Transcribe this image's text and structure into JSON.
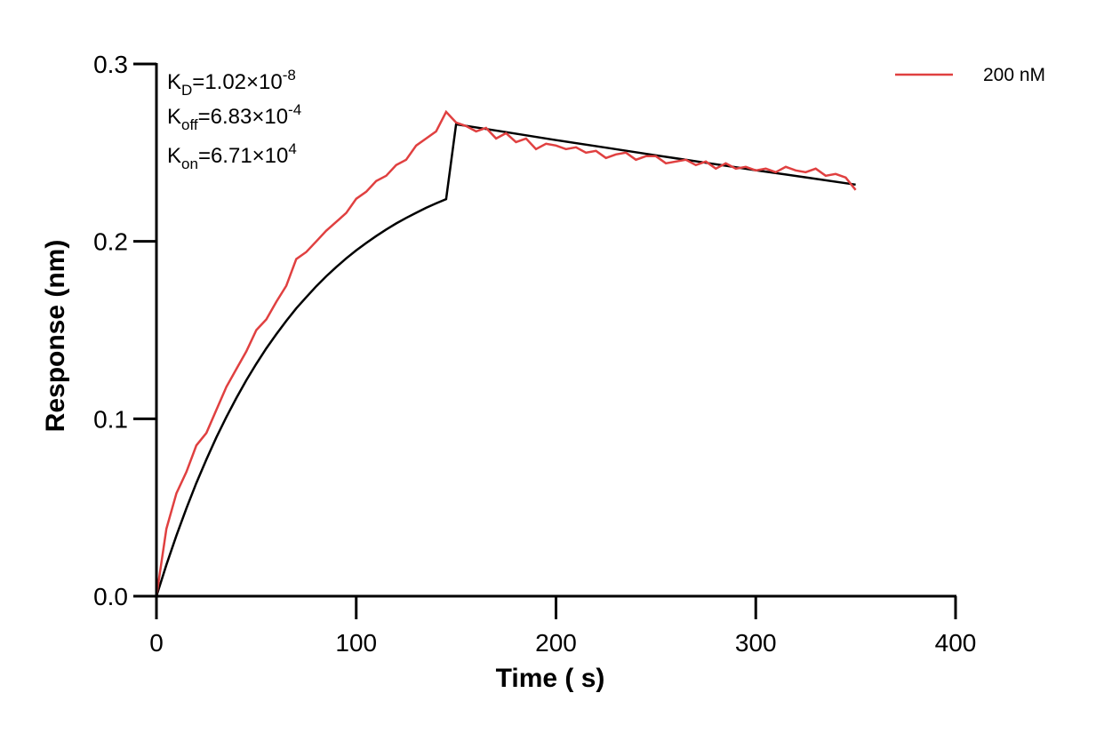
{
  "chart_data": {
    "type": "line",
    "title": "",
    "xlabel": "Time ( s)",
    "ylabel": "Response (nm)",
    "xlim": [
      0,
      400
    ],
    "ylim": [
      0,
      0.3
    ],
    "xticks": [
      0,
      100,
      200,
      300,
      400
    ],
    "yticks": [
      0.0,
      0.1,
      0.2,
      0.3
    ],
    "xtick_labels": [
      "0",
      "100",
      "200",
      "300",
      "400"
    ],
    "ytick_labels": [
      "0.0",
      "0.1",
      "0.2",
      "0.3"
    ],
    "grid": false,
    "legend_position": "top-right",
    "annotations": [
      {
        "base": "K",
        "sub": "D",
        "value": "=1.02×10",
        "exp": "-8"
      },
      {
        "base": "K",
        "sub": "off",
        "value": "=6.83×10",
        "exp": "-4"
      },
      {
        "base": "K",
        "sub": "on",
        "value": "=6.71×10",
        "exp": "4"
      }
    ],
    "series": [
      {
        "name": "200 nM",
        "color": "#e04040",
        "role": "measured",
        "x": [
          0,
          5,
          10,
          15,
          20,
          25,
          30,
          35,
          40,
          45,
          50,
          55,
          60,
          65,
          70,
          75,
          80,
          85,
          90,
          95,
          100,
          105,
          110,
          115,
          120,
          125,
          130,
          135,
          140,
          145,
          150,
          155,
          160,
          165,
          170,
          175,
          180,
          185,
          190,
          195,
          200,
          205,
          210,
          215,
          220,
          225,
          230,
          235,
          240,
          245,
          250,
          255,
          260,
          265,
          270,
          275,
          280,
          285,
          290,
          295,
          300,
          305,
          310,
          315,
          320,
          325,
          330,
          335,
          340,
          345,
          350
        ],
        "y": [
          0.0,
          0.038,
          0.058,
          0.07,
          0.085,
          0.092,
          0.105,
          0.118,
          0.128,
          0.138,
          0.15,
          0.156,
          0.166,
          0.175,
          0.19,
          0.194,
          0.2,
          0.206,
          0.211,
          0.216,
          0.224,
          0.228,
          0.234,
          0.237,
          0.243,
          0.246,
          0.254,
          0.258,
          0.262,
          0.273,
          0.267,
          0.265,
          0.262,
          0.264,
          0.258,
          0.261,
          0.256,
          0.258,
          0.252,
          0.255,
          0.254,
          0.252,
          0.253,
          0.25,
          0.251,
          0.247,
          0.249,
          0.25,
          0.246,
          0.248,
          0.248,
          0.244,
          0.245,
          0.246,
          0.243,
          0.245,
          0.241,
          0.244,
          0.241,
          0.242,
          0.24,
          0.241,
          0.239,
          0.242,
          0.24,
          0.239,
          0.241,
          0.237,
          0.238,
          0.236,
          0.229
        ]
      },
      {
        "name": "",
        "color": "#000000",
        "role": "fit",
        "x": [
          0,
          5,
          10,
          15,
          20,
          25,
          30,
          35,
          40,
          45,
          50,
          55,
          60,
          65,
          70,
          75,
          80,
          85,
          90,
          95,
          100,
          105,
          110,
          115,
          120,
          125,
          130,
          135,
          140,
          145,
          150,
          175,
          200,
          225,
          250,
          275,
          300,
          325,
          350
        ],
        "y": [
          0.0,
          0.0177,
          0.0342,
          0.0495,
          0.0638,
          0.0771,
          0.0895,
          0.101,
          0.1117,
          0.1217,
          0.131,
          0.1397,
          0.1477,
          0.1552,
          0.1622,
          0.1686,
          0.1747,
          0.1803,
          0.1855,
          0.1904,
          0.1949,
          0.1991,
          0.203,
          0.2067,
          0.2101,
          0.2132,
          0.2161,
          0.2189,
          0.2214,
          0.2238,
          0.266,
          0.2616,
          0.2571,
          0.2528,
          0.2485,
          0.2443,
          0.2401,
          0.2361,
          0.232
        ]
      }
    ]
  }
}
